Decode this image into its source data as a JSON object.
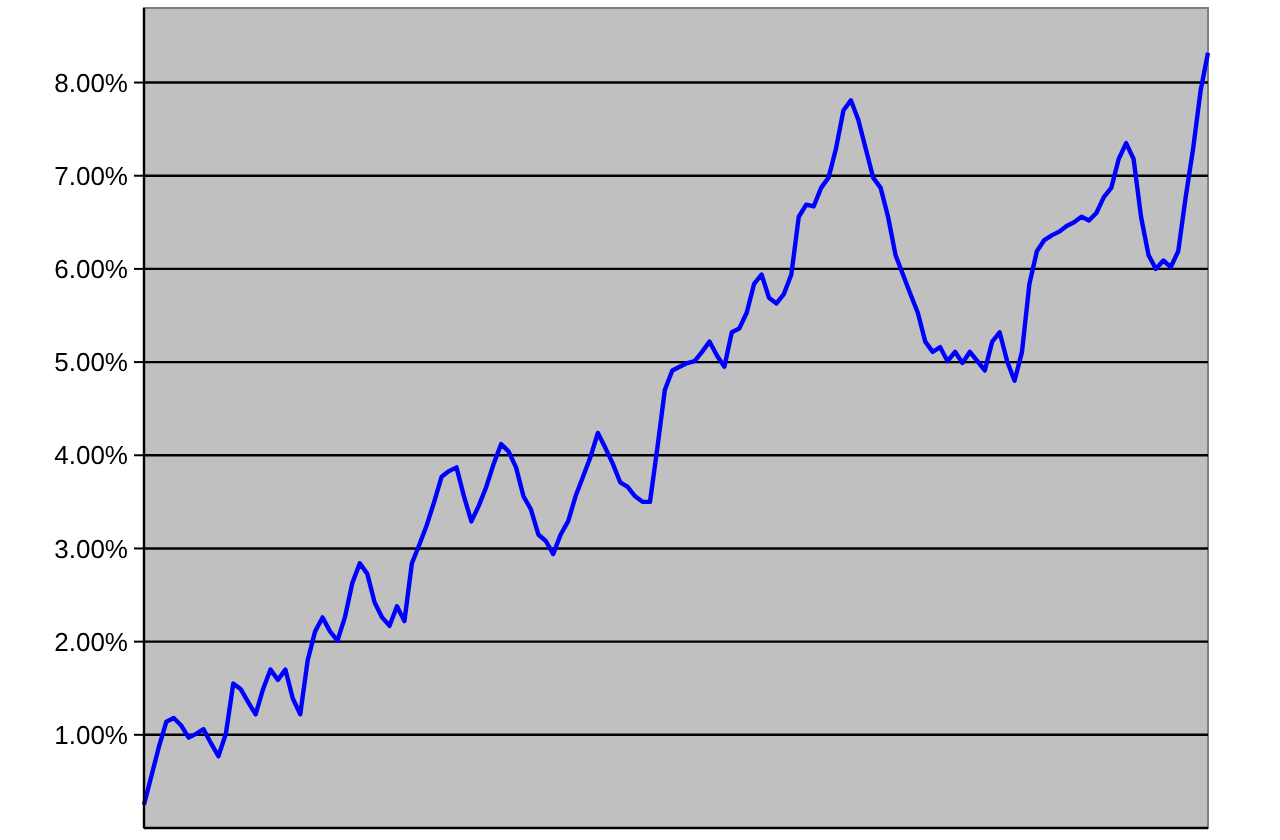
{
  "chart_data": {
    "type": "line",
    "categories": [
      null,
      null,
      null,
      null,
      null,
      null,
      null,
      null,
      null,
      null,
      null,
      null,
      null,
      null,
      null,
      null,
      null,
      null,
      null,
      null,
      null,
      null,
      null,
      null,
      null,
      null,
      null,
      null,
      null,
      null,
      null,
      null,
      null,
      null,
      null,
      null,
      null,
      null,
      null,
      null,
      null,
      null,
      null,
      null,
      null,
      null,
      null,
      null,
      null,
      null,
      null,
      null,
      null,
      null,
      null,
      null,
      null,
      null,
      null,
      null,
      null,
      null,
      null,
      null,
      null,
      null,
      null,
      null,
      null,
      null,
      null,
      null,
      null,
      null,
      null,
      null,
      null,
      null,
      null,
      null,
      null,
      null,
      null,
      null,
      null,
      null,
      null,
      null,
      null,
      null,
      null,
      null,
      null,
      null,
      null,
      null,
      null,
      null,
      null,
      null,
      null,
      null,
      null,
      null,
      null,
      null,
      null,
      null,
      null,
      null,
      null,
      null,
      null,
      null,
      null,
      null,
      null,
      null,
      null,
      null,
      null,
      null,
      null,
      null,
      null,
      null,
      null,
      null,
      null,
      null,
      null,
      null,
      null,
      null,
      null,
      null,
      null,
      null,
      null,
      null,
      null,
      null,
      null,
      null
    ],
    "series": [
      {
        "color": "#0000ff",
        "values": [
          0.25,
          0.56,
          0.87,
          1.14,
          1.18,
          1.1,
          0.97,
          1.01,
          1.06,
          0.91,
          0.77,
          1.01,
          1.55,
          1.49,
          1.35,
          1.22,
          1.49,
          1.7,
          1.59,
          1.7,
          1.39,
          1.22,
          1.8,
          2.11,
          2.26,
          2.11,
          2.01,
          2.26,
          2.63,
          2.84,
          2.73,
          2.42,
          2.26,
          2.17,
          2.38,
          2.22,
          2.84,
          3.04,
          3.25,
          3.5,
          3.77,
          3.83,
          3.87,
          3.56,
          3.29,
          3.46,
          3.66,
          3.91,
          4.12,
          4.04,
          3.87,
          3.56,
          3.42,
          3.15,
          3.08,
          2.94,
          3.15,
          3.29,
          3.56,
          3.77,
          3.98,
          4.24,
          4.08,
          3.91,
          3.71,
          3.66,
          3.56,
          3.5,
          3.5,
          4.08,
          4.7,
          4.91,
          4.95,
          4.99,
          5.01,
          5.11,
          5.22,
          5.07,
          4.95,
          5.32,
          5.36,
          5.53,
          5.84,
          5.94,
          5.69,
          5.63,
          5.73,
          5.94,
          6.56,
          6.69,
          6.67,
          6.87,
          6.98,
          7.29,
          7.7,
          7.81,
          7.6,
          7.29,
          6.98,
          6.87,
          6.56,
          6.15,
          5.94,
          5.73,
          5.53,
          5.22,
          5.11,
          5.16,
          5.01,
          5.11,
          4.99,
          5.11,
          5.01,
          4.91,
          5.22,
          5.32,
          5.01,
          4.8,
          5.11,
          5.84,
          6.19,
          6.31,
          6.36,
          6.4,
          6.46,
          6.5,
          6.56,
          6.52,
          6.6,
          6.77,
          6.87,
          7.18,
          7.35,
          7.18,
          6.56,
          6.15,
          6.0,
          6.09,
          6.02,
          6.19,
          6.77,
          7.29,
          7.91,
          8.32
        ]
      }
    ],
    "ylim": [
      0,
      8.8
    ],
    "yticks": [
      {
        "value": 1,
        "label": "1.00%"
      },
      {
        "value": 2,
        "label": "2.00%"
      },
      {
        "value": 3,
        "label": "3.00%"
      },
      {
        "value": 4,
        "label": "4.00%"
      },
      {
        "value": 5,
        "label": "5.00%"
      },
      {
        "value": 6,
        "label": "6.00%"
      },
      {
        "value": 7,
        "label": "7.00%"
      },
      {
        "value": 8,
        "label": "8.00%"
      }
    ],
    "grid": "y",
    "tick_labels": "y",
    "marker": "none",
    "line_style": "solid"
  }
}
